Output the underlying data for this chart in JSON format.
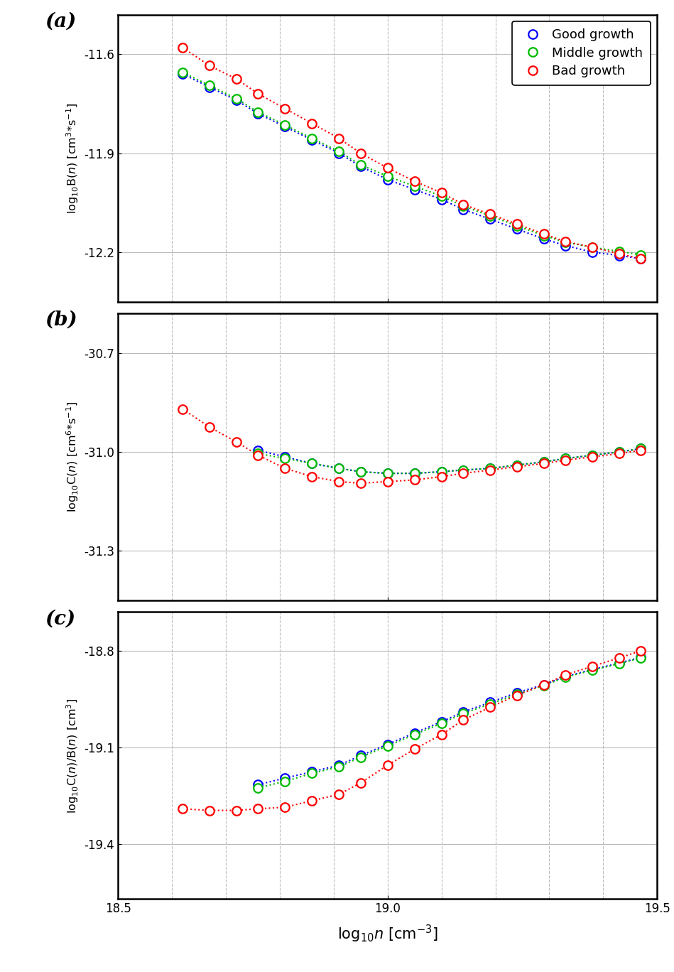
{
  "xlim": [
    18.5,
    19.5
  ],
  "xticks": [
    18.5,
    19.0,
    19.5
  ],
  "xlabel": "log$_{10}n$ [cm$^{-3}$]",
  "panel_a": {
    "ylabel": "log$_{10}$B($n$) [cm$^{3}$*s$^{-1}$]",
    "ylim": [
      -12.35,
      -11.48
    ],
    "yticks": [
      -12.2,
      -11.9,
      -11.6
    ],
    "good_x": [
      18.62,
      18.67,
      18.72,
      18.76,
      18.81,
      18.86,
      18.91,
      18.95,
      19.0,
      19.05,
      19.1,
      19.14,
      19.19,
      19.24,
      19.29,
      19.33,
      19.38,
      19.43,
      19.47
    ],
    "good_y": [
      -11.66,
      -11.7,
      -11.74,
      -11.78,
      -11.82,
      -11.86,
      -11.9,
      -11.94,
      -11.98,
      -12.01,
      -12.04,
      -12.07,
      -12.1,
      -12.13,
      -12.16,
      -12.18,
      -12.2,
      -12.21,
      -12.22
    ],
    "middle_x": [
      18.62,
      18.67,
      18.72,
      18.76,
      18.81,
      18.86,
      18.91,
      18.95,
      19.0,
      19.05,
      19.1,
      19.14,
      19.19,
      19.24,
      19.29,
      19.33,
      19.38,
      19.43,
      19.47
    ],
    "middle_y": [
      -11.655,
      -11.695,
      -11.735,
      -11.775,
      -11.815,
      -11.855,
      -11.895,
      -11.935,
      -11.97,
      -12.0,
      -12.03,
      -12.06,
      -12.09,
      -12.12,
      -12.15,
      -12.17,
      -12.185,
      -12.198,
      -12.208
    ],
    "bad_x": [
      18.62,
      18.67,
      18.72,
      18.76,
      18.81,
      18.86,
      18.91,
      18.95,
      19.0,
      19.05,
      19.1,
      19.14,
      19.19,
      19.24,
      19.29,
      19.33,
      19.38,
      19.43,
      19.47
    ],
    "bad_y": [
      -11.58,
      -11.635,
      -11.675,
      -11.72,
      -11.765,
      -11.81,
      -11.855,
      -11.9,
      -11.945,
      -11.985,
      -12.02,
      -12.055,
      -12.085,
      -12.115,
      -12.145,
      -12.168,
      -12.185,
      -12.205,
      -12.22
    ]
  },
  "panel_b": {
    "ylabel": "log$_{10}$C($n$) [cm$^{6}$*s$^{-1}$]",
    "ylim": [
      -31.45,
      -30.58
    ],
    "yticks": [
      -31.3,
      -31.0,
      -30.7
    ],
    "good_x": [
      18.76,
      18.81,
      18.86,
      18.91,
      18.95,
      19.0,
      19.05,
      19.1,
      19.14,
      19.19,
      19.24,
      19.29,
      19.33,
      19.38,
      19.43,
      19.47
    ],
    "good_y": [
      -30.995,
      -31.015,
      -31.035,
      -31.05,
      -31.06,
      -31.065,
      -31.065,
      -31.06,
      -31.055,
      -31.05,
      -31.04,
      -31.03,
      -31.02,
      -31.01,
      -31.0,
      -30.99
    ],
    "middle_x": [
      18.76,
      18.81,
      18.86,
      18.91,
      18.95,
      19.0,
      19.05,
      19.1,
      19.14,
      19.19,
      19.24,
      19.29,
      19.33,
      19.38,
      19.43,
      19.47
    ],
    "middle_y": [
      -31.005,
      -31.02,
      -31.035,
      -31.05,
      -31.06,
      -31.065,
      -31.065,
      -31.06,
      -31.055,
      -31.05,
      -31.04,
      -31.03,
      -31.02,
      -31.01,
      -31.0,
      -30.99
    ],
    "bad_x": [
      18.62,
      18.67,
      18.72,
      18.76,
      18.81,
      18.86,
      18.91,
      18.95,
      19.0,
      19.05,
      19.1,
      19.14,
      19.19,
      19.24,
      19.29,
      19.33,
      19.38,
      19.43,
      19.47
    ],
    "bad_y": [
      -30.87,
      -30.925,
      -30.97,
      -31.01,
      -31.05,
      -31.075,
      -31.09,
      -31.095,
      -31.09,
      -31.085,
      -31.075,
      -31.065,
      -31.055,
      -31.045,
      -31.035,
      -31.025,
      -31.015,
      -31.005,
      -30.995
    ]
  },
  "panel_c": {
    "ylabel": "log$_{10}$C($n$)/B($n$) [cm$^{3}$]",
    "ylim": [
      -19.57,
      -18.68
    ],
    "yticks": [
      -19.4,
      -19.1,
      -18.8
    ],
    "good_x": [
      18.76,
      18.81,
      18.86,
      18.91,
      18.95,
      19.0,
      19.05,
      19.1,
      19.14,
      19.19,
      19.24,
      19.29,
      19.33,
      19.38,
      19.43,
      19.47
    ],
    "good_y": [
      -19.215,
      -19.195,
      -19.175,
      -19.155,
      -19.125,
      -19.09,
      -19.055,
      -19.02,
      -18.99,
      -18.96,
      -18.93,
      -18.905,
      -18.88,
      -18.858,
      -18.838,
      -18.82
    ],
    "middle_x": [
      18.76,
      18.81,
      18.86,
      18.91,
      18.95,
      19.0,
      19.05,
      19.1,
      19.14,
      19.19,
      19.24,
      19.29,
      19.33,
      19.38,
      19.43,
      19.47
    ],
    "middle_y": [
      -19.225,
      -19.205,
      -19.18,
      -19.16,
      -19.13,
      -19.095,
      -19.06,
      -19.025,
      -18.995,
      -18.965,
      -18.935,
      -18.908,
      -18.882,
      -18.86,
      -18.84,
      -18.822
    ],
    "bad_x": [
      18.62,
      18.67,
      18.72,
      18.76,
      18.81,
      18.86,
      18.91,
      18.95,
      19.0,
      19.05,
      19.1,
      19.14,
      19.19,
      19.24,
      19.29,
      19.33,
      19.38,
      19.43,
      19.47
    ],
    "bad_y": [
      -19.29,
      -19.295,
      -19.295,
      -19.29,
      -19.285,
      -19.265,
      -19.245,
      -19.21,
      -19.155,
      -19.105,
      -19.06,
      -19.015,
      -18.975,
      -18.938,
      -18.905,
      -18.875,
      -18.848,
      -18.822,
      -18.8
    ]
  },
  "colors": {
    "good": "#0000FF",
    "middle": "#00BB00",
    "bad": "#FF0000"
  },
  "marker_size": 9,
  "line_width": 1.5,
  "grid_color": "#BBBBBB",
  "vgrid_positions": [
    18.6,
    18.7,
    18.8,
    18.9,
    19.0,
    19.1,
    19.2,
    19.3,
    19.4,
    19.5
  ]
}
